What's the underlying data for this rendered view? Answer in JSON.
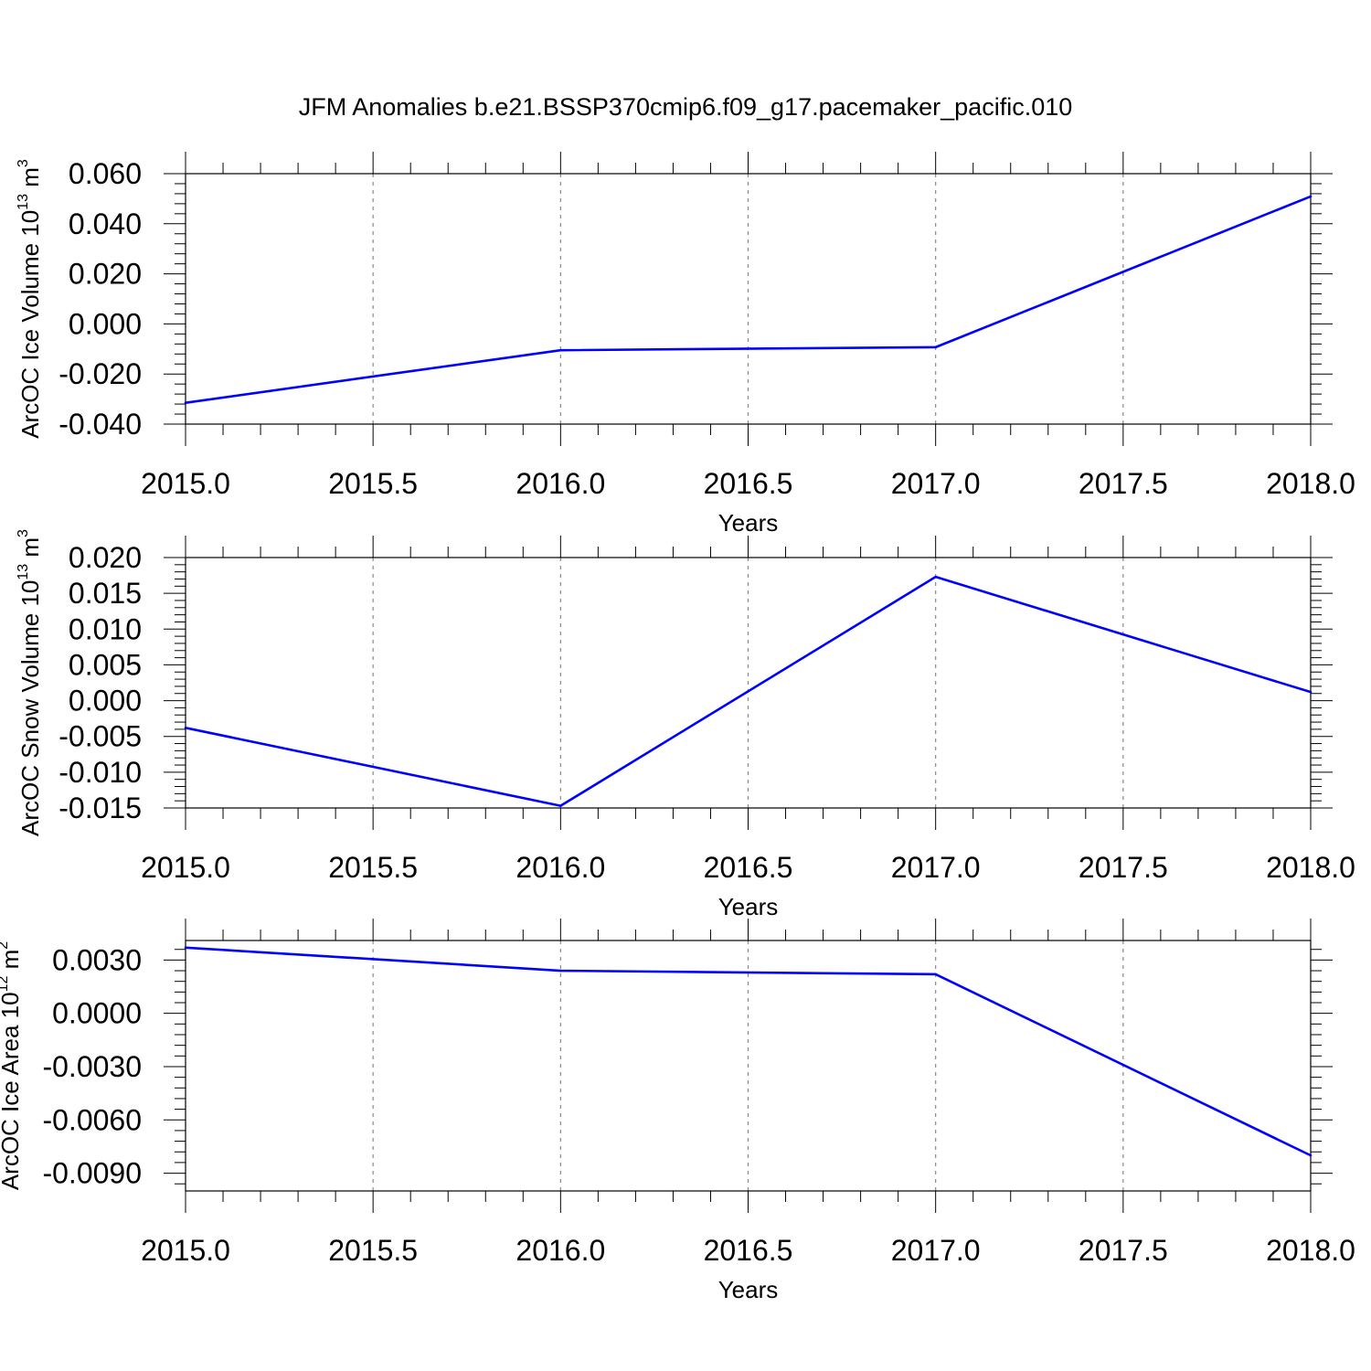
{
  "figure_title": "JFM Anomalies b.e21.BSSP370cmip6.f09_g17.pacemaker_pacific.010",
  "chart_data": [
    {
      "type": "line",
      "xlabel": "Years",
      "ylabel": {
        "text": "ArcOC Ice Volume 10",
        "exponent": "13",
        "unit": " m",
        "unit_exponent": "3"
      },
      "x": [
        2015.0,
        2016.0,
        2017.0,
        2018.0
      ],
      "series": [
        {
          "values": [
            -0.0315,
            -0.0105,
            -0.0093,
            0.0509
          ],
          "color": "#0000ff"
        }
      ],
      "xlim": [
        2015.0,
        2018.0
      ],
      "ylim": [
        -0.04,
        0.06
      ],
      "xticks": [
        "2015.0",
        "2015.5",
        "2016.0",
        "2016.5",
        "2017.0",
        "2017.5",
        "2018.0"
      ],
      "xtick_values": [
        2015.0,
        2015.5,
        2016.0,
        2016.5,
        2017.0,
        2017.5,
        2018.0
      ],
      "yticks": [
        "0.060",
        "0.040",
        "0.020",
        "0.000",
        "-0.020",
        "-0.040"
      ],
      "ytick_values": [
        0.06,
        0.04,
        0.02,
        0.0,
        -0.02,
        -0.04
      ],
      "grid": "vertical dashed"
    },
    {
      "type": "line",
      "xlabel": "Years",
      "ylabel": {
        "text": "ArcOC Snow Volume 10",
        "exponent": "13",
        "unit": " m",
        "unit_exponent": "3"
      },
      "x": [
        2015.0,
        2016.0,
        2017.0,
        2018.0
      ],
      "series": [
        {
          "values": [
            -0.0038,
            -0.0147,
            0.0173,
            0.0012
          ],
          "color": "#0000ff"
        }
      ],
      "xlim": [
        2015.0,
        2018.0
      ],
      "ylim": [
        -0.015,
        0.02
      ],
      "xticks": [
        "2015.0",
        "2015.5",
        "2016.0",
        "2016.5",
        "2017.0",
        "2017.5",
        "2018.0"
      ],
      "xtick_values": [
        2015.0,
        2015.5,
        2016.0,
        2016.5,
        2017.0,
        2017.5,
        2018.0
      ],
      "yticks": [
        "0.020",
        "0.015",
        "0.010",
        "0.005",
        "0.000",
        "-0.005",
        "-0.010",
        "-0.015"
      ],
      "ytick_values": [
        0.02,
        0.015,
        0.01,
        0.005,
        0.0,
        -0.005,
        -0.01,
        -0.015
      ],
      "grid": "vertical dashed"
    },
    {
      "type": "line",
      "xlabel": "Years",
      "ylabel": {
        "text": "ArcOC Ice Area 10",
        "exponent": "12",
        "unit": " m",
        "unit_exponent": "2"
      },
      "x": [
        2015.0,
        2016.0,
        2017.0,
        2018.0
      ],
      "series": [
        {
          "values": [
            0.0037,
            0.0024,
            0.0022,
            -0.008
          ],
          "color": "#0000ff"
        }
      ],
      "xlim": [
        2015.0,
        2018.0
      ],
      "ylim": [
        -0.01,
        0.0041
      ],
      "xticks": [
        "2015.0",
        "2015.5",
        "2016.0",
        "2016.5",
        "2017.0",
        "2017.5",
        "2018.0"
      ],
      "xtick_values": [
        2015.0,
        2015.5,
        2016.0,
        2016.5,
        2017.0,
        2017.5,
        2018.0
      ],
      "yticks": [
        "0.0030",
        "0.0000",
        "-0.0030",
        "-0.0060",
        "-0.0090"
      ],
      "ytick_values": [
        0.003,
        0.0,
        -0.003,
        -0.006,
        -0.009
      ],
      "grid": "vertical dashed"
    }
  ]
}
